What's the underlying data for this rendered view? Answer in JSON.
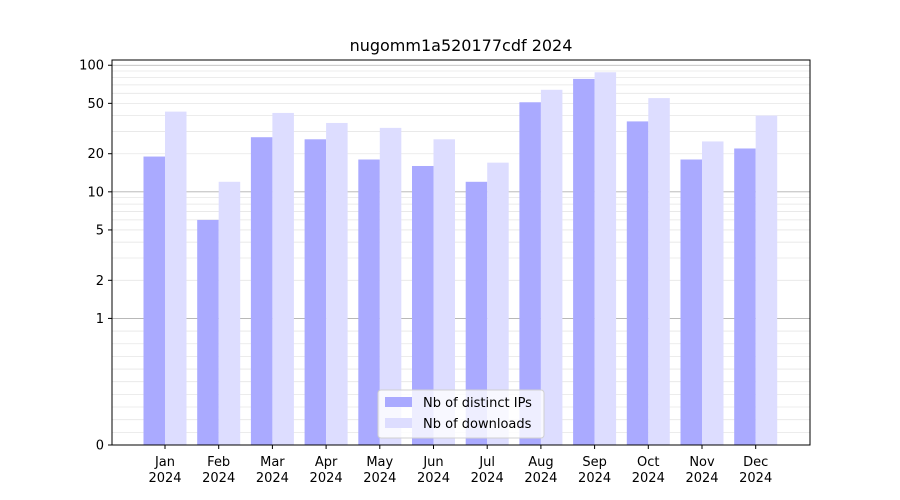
{
  "chart_data": {
    "type": "bar",
    "title": "nugomm1a520177cdf 2024",
    "xlabel": "",
    "ylabel": "",
    "yscale": "symlog",
    "ylim": [
      0,
      110
    ],
    "y_ticks": [
      0,
      1,
      2,
      5,
      10,
      20,
      50,
      100
    ],
    "y_tick_labels": [
      "0",
      "1",
      "2",
      "5",
      "10",
      "20",
      "50",
      "100"
    ],
    "categories": [
      "Jan",
      "Feb",
      "Mar",
      "Apr",
      "May",
      "Jun",
      "Jul",
      "Aug",
      "Sep",
      "Oct",
      "Nov",
      "Dec"
    ],
    "category_year": "2024",
    "series": [
      {
        "name": "Nb of distinct IPs",
        "color": "#aaaaff",
        "values": [
          19,
          6,
          27,
          26,
          18,
          16,
          12,
          51,
          78,
          36,
          18,
          22
        ]
      },
      {
        "name": "Nb of downloads",
        "color": "#ddddff",
        "values": [
          43,
          12,
          42,
          35,
          32,
          26,
          17,
          64,
          88,
          55,
          25,
          40
        ]
      }
    ],
    "grid": true,
    "legend_position": "bottom-center"
  }
}
